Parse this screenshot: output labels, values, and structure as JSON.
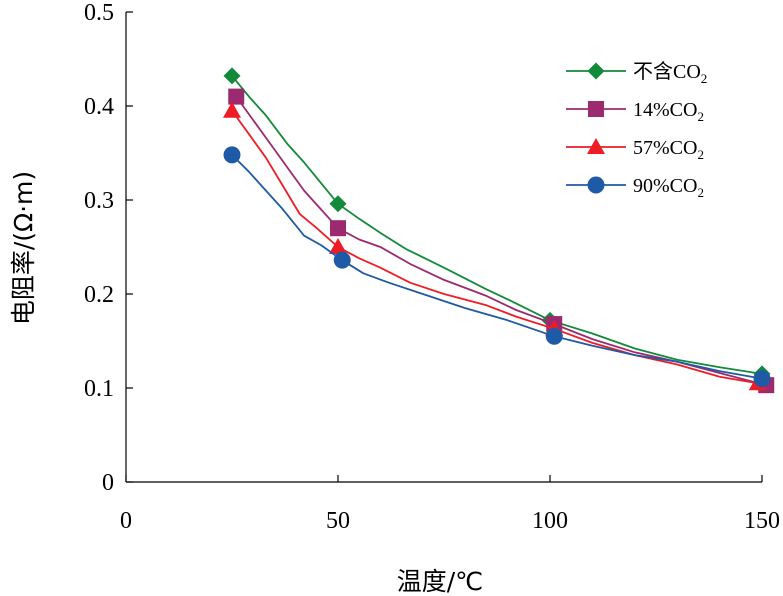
{
  "chart_data": {
    "type": "line",
    "title": "",
    "xlabel": "温度/℃",
    "ylabel": "电阻率/(Ω·m)",
    "xlim": [
      0,
      150
    ],
    "ylim": [
      0,
      0.5
    ],
    "x_ticks": [
      "0",
      "50",
      "100",
      "150"
    ],
    "y_ticks": [
      "0",
      "0.1",
      "0.2",
      "0.3",
      "0.4",
      "0.5"
    ],
    "legend_position": "top-right",
    "series": [
      {
        "name": "不含CO2",
        "label_main": "不含CO",
        "label_sub": "2",
        "color": "#138a3a",
        "marker": "diamond",
        "markers": [
          [
            25,
            0.432
          ],
          [
            50,
            0.296
          ],
          [
            100,
            0.172
          ],
          [
            150,
            0.115
          ]
        ],
        "curve": [
          [
            25,
            0.432
          ],
          [
            29,
            0.41
          ],
          [
            33,
            0.39
          ],
          [
            38,
            0.36
          ],
          [
            42,
            0.34
          ],
          [
            46,
            0.318
          ],
          [
            50,
            0.296
          ],
          [
            55,
            0.28
          ],
          [
            60,
            0.265
          ],
          [
            66,
            0.248
          ],
          [
            75,
            0.228
          ],
          [
            85,
            0.205
          ],
          [
            92,
            0.19
          ],
          [
            100,
            0.172
          ],
          [
            110,
            0.158
          ],
          [
            120,
            0.142
          ],
          [
            130,
            0.13
          ],
          [
            140,
            0.122
          ],
          [
            150,
            0.115
          ]
        ]
      },
      {
        "name": "14%CO2",
        "label_main": "14%CO",
        "label_sub": "2",
        "color": "#9b2a6e",
        "marker": "square",
        "markers": [
          [
            26,
            0.41
          ],
          [
            50,
            0.27
          ],
          [
            101,
            0.168
          ],
          [
            151,
            0.103
          ]
        ],
        "curve": [
          [
            26,
            0.41
          ],
          [
            30,
            0.385
          ],
          [
            34,
            0.36
          ],
          [
            38,
            0.335
          ],
          [
            42,
            0.31
          ],
          [
            46,
            0.29
          ],
          [
            50,
            0.27
          ],
          [
            55,
            0.258
          ],
          [
            60,
            0.25
          ],
          [
            67,
            0.232
          ],
          [
            75,
            0.215
          ],
          [
            85,
            0.198
          ],
          [
            92,
            0.183
          ],
          [
            101,
            0.168
          ],
          [
            110,
            0.152
          ],
          [
            120,
            0.138
          ],
          [
            130,
            0.128
          ],
          [
            140,
            0.116
          ],
          [
            151,
            0.103
          ]
        ]
      },
      {
        "name": "57%CO2",
        "label_main": "57%CO",
        "label_sub": "2",
        "color": "#ee1c25",
        "marker": "triangle",
        "markers": [
          [
            25,
            0.395
          ],
          [
            50,
            0.25
          ],
          [
            101,
            0.163
          ],
          [
            149,
            0.105
          ]
        ],
        "curve": [
          [
            25,
            0.395
          ],
          [
            29,
            0.37
          ],
          [
            33,
            0.345
          ],
          [
            37,
            0.315
          ],
          [
            41,
            0.285
          ],
          [
            45,
            0.27
          ],
          [
            50,
            0.25
          ],
          [
            55,
            0.238
          ],
          [
            60,
            0.228
          ],
          [
            67,
            0.212
          ],
          [
            75,
            0.2
          ],
          [
            85,
            0.188
          ],
          [
            92,
            0.176
          ],
          [
            101,
            0.163
          ],
          [
            110,
            0.148
          ],
          [
            120,
            0.135
          ],
          [
            130,
            0.125
          ],
          [
            140,
            0.112
          ],
          [
            149,
            0.105
          ]
        ]
      },
      {
        "name": "90%CO2",
        "label_main": "90%CO",
        "label_sub": "2",
        "color": "#1f5aa6",
        "marker": "circle",
        "markers": [
          [
            25,
            0.348
          ],
          [
            51,
            0.236
          ],
          [
            101,
            0.155
          ],
          [
            150,
            0.11
          ]
        ],
        "curve": [
          [
            25,
            0.348
          ],
          [
            29,
            0.33
          ],
          [
            33,
            0.31
          ],
          [
            37,
            0.29
          ],
          [
            42,
            0.262
          ],
          [
            46,
            0.252
          ],
          [
            51,
            0.236
          ],
          [
            56,
            0.222
          ],
          [
            62,
            0.212
          ],
          [
            70,
            0.2
          ],
          [
            80,
            0.185
          ],
          [
            90,
            0.172
          ],
          [
            101,
            0.155
          ],
          [
            110,
            0.145
          ],
          [
            120,
            0.135
          ],
          [
            130,
            0.128
          ],
          [
            140,
            0.118
          ],
          [
            150,
            0.11
          ]
        ]
      }
    ]
  }
}
